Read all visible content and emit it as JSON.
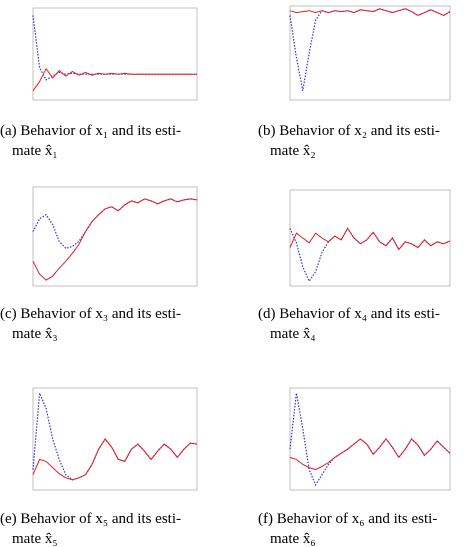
{
  "chart_data": [
    {
      "type": "line",
      "caption": [
        "(a) Behavior of x₁ and its esti-",
        "mate x̂₁"
      ],
      "xlim": [
        0,
        100
      ],
      "ylim": [
        0,
        1
      ],
      "x": [
        0,
        4,
        8,
        12,
        16,
        20,
        24,
        28,
        32,
        36,
        40,
        44,
        48,
        52,
        56,
        60,
        64,
        68,
        72,
        76,
        80,
        84,
        88,
        92,
        96,
        100
      ],
      "series": [
        {
          "color": "#3333cc",
          "style": "dotted",
          "values": [
            0.92,
            0.35,
            0.22,
            0.26,
            0.3,
            0.28,
            0.29,
            0.28,
            0.28,
            0.28,
            0.28,
            0.28,
            0.28,
            0.28,
            0.28,
            0.28,
            0.28,
            0.28,
            0.28,
            0.28,
            0.28,
            0.28,
            0.28,
            0.28,
            0.28,
            0.28
          ]
        },
        {
          "color": "#e02020",
          "style": "solid",
          "values": [
            0.1,
            0.2,
            0.34,
            0.24,
            0.32,
            0.26,
            0.31,
            0.27,
            0.3,
            0.27,
            0.29,
            0.28,
            0.29,
            0.28,
            0.29,
            0.28,
            0.28,
            0.28,
            0.28,
            0.28,
            0.28,
            0.28,
            0.28,
            0.28,
            0.28,
            0.28
          ]
        }
      ]
    },
    {
      "type": "line",
      "caption": [
        "(b) Behavior of x₂ and its esti-",
        "mate x̂₂"
      ],
      "xlim": [
        0,
        100
      ],
      "ylim": [
        0,
        1
      ],
      "x": [
        0,
        4,
        8,
        12,
        16,
        20,
        24,
        28,
        32,
        36,
        40,
        44,
        48,
        52,
        56,
        60,
        64,
        68,
        72,
        76,
        80,
        84,
        88,
        92,
        96,
        100
      ],
      "series": [
        {
          "color": "#3333cc",
          "style": "dotted",
          "values": [
            0.9,
            0.45,
            0.1,
            0.5,
            0.85,
            0.95,
            0.93,
            0.95,
            0.94,
            0.95,
            0.93,
            0.96,
            0.95,
            0.94,
            0.97,
            0.95,
            0.93,
            0.95,
            0.97,
            0.94,
            0.9,
            0.93,
            0.96,
            0.93,
            0.9,
            0.94
          ]
        },
        {
          "color": "#e02020",
          "style": "solid",
          "values": [
            0.95,
            0.93,
            0.94,
            0.95,
            0.93,
            0.95,
            0.93,
            0.95,
            0.94,
            0.95,
            0.93,
            0.96,
            0.95,
            0.94,
            0.97,
            0.95,
            0.93,
            0.95,
            0.97,
            0.94,
            0.9,
            0.93,
            0.96,
            0.93,
            0.9,
            0.94
          ]
        }
      ]
    },
    {
      "type": "line",
      "caption": [
        "(c) Behavior of x₃ and its esti-",
        "mate x̂₃"
      ],
      "xlim": [
        0,
        100
      ],
      "ylim": [
        0,
        1
      ],
      "x": [
        0,
        4,
        8,
        12,
        16,
        20,
        24,
        28,
        32,
        36,
        40,
        44,
        48,
        52,
        56,
        60,
        64,
        68,
        72,
        76,
        80,
        84,
        88,
        92,
        96,
        100
      ],
      "series": [
        {
          "color": "#3333cc",
          "style": "dotted",
          "values": [
            0.55,
            0.68,
            0.72,
            0.62,
            0.45,
            0.38,
            0.4,
            0.45,
            0.55,
            0.65,
            0.72,
            0.78,
            0.8,
            0.76,
            0.82,
            0.86,
            0.84,
            0.88,
            0.86,
            0.83,
            0.86,
            0.88,
            0.85,
            0.87,
            0.88,
            0.87
          ]
        },
        {
          "color": "#e02020",
          "style": "solid",
          "values": [
            0.25,
            0.12,
            0.06,
            0.1,
            0.18,
            0.25,
            0.33,
            0.42,
            0.55,
            0.65,
            0.72,
            0.78,
            0.8,
            0.76,
            0.82,
            0.86,
            0.84,
            0.88,
            0.86,
            0.83,
            0.86,
            0.88,
            0.85,
            0.87,
            0.88,
            0.87
          ]
        }
      ]
    },
    {
      "type": "line",
      "caption": [
        "(d) Behavior of x₄ and its esti-",
        "mate x̂₄"
      ],
      "xlim": [
        0,
        100
      ],
      "ylim": [
        0,
        1
      ],
      "x": [
        0,
        4,
        8,
        12,
        16,
        20,
        24,
        28,
        32,
        36,
        40,
        44,
        48,
        52,
        56,
        60,
        64,
        68,
        72,
        76,
        80,
        84,
        88,
        92,
        96,
        100
      ],
      "series": [
        {
          "color": "#3333cc",
          "style": "dotted",
          "values": [
            0.6,
            0.45,
            0.2,
            0.05,
            0.15,
            0.35,
            0.46,
            0.52,
            0.48,
            0.6,
            0.5,
            0.44,
            0.48,
            0.56,
            0.46,
            0.42,
            0.5,
            0.38,
            0.46,
            0.44,
            0.4,
            0.48,
            0.42,
            0.46,
            0.44,
            0.47
          ]
        },
        {
          "color": "#e02020",
          "style": "solid",
          "values": [
            0.4,
            0.55,
            0.5,
            0.45,
            0.55,
            0.5,
            0.46,
            0.52,
            0.48,
            0.6,
            0.5,
            0.44,
            0.48,
            0.56,
            0.46,
            0.42,
            0.5,
            0.38,
            0.46,
            0.44,
            0.4,
            0.48,
            0.42,
            0.46,
            0.44,
            0.47
          ]
        }
      ]
    },
    {
      "type": "line",
      "caption": [
        "(e) Behavior of x₅ and its esti-",
        "mate x̂₅"
      ],
      "xlim": [
        0,
        100
      ],
      "ylim": [
        0,
        1
      ],
      "x": [
        0,
        4,
        8,
        12,
        16,
        20,
        24,
        28,
        32,
        36,
        40,
        44,
        48,
        52,
        56,
        60,
        64,
        68,
        72,
        76,
        80,
        84,
        88,
        92,
        96,
        100
      ],
      "series": [
        {
          "color": "#3333cc",
          "style": "dotted",
          "values": [
            0.2,
            0.95,
            0.8,
            0.5,
            0.3,
            0.15,
            0.1,
            0.12,
            0.15,
            0.25,
            0.4,
            0.5,
            0.42,
            0.3,
            0.28,
            0.4,
            0.45,
            0.38,
            0.3,
            0.38,
            0.45,
            0.4,
            0.32,
            0.4,
            0.46,
            0.45
          ]
        },
        {
          "color": "#e02020",
          "style": "solid",
          "values": [
            0.15,
            0.3,
            0.28,
            0.22,
            0.16,
            0.12,
            0.1,
            0.12,
            0.15,
            0.25,
            0.4,
            0.5,
            0.42,
            0.3,
            0.28,
            0.4,
            0.45,
            0.38,
            0.3,
            0.38,
            0.45,
            0.4,
            0.32,
            0.4,
            0.46,
            0.45
          ]
        }
      ]
    },
    {
      "type": "line",
      "caption": [
        "(f) Behavior of x₆ and its esti-",
        "mate x̂₆"
      ],
      "xlim": [
        0,
        100
      ],
      "ylim": [
        0,
        1
      ],
      "x": [
        0,
        4,
        8,
        12,
        16,
        20,
        24,
        28,
        32,
        36,
        40,
        44,
        48,
        52,
        56,
        60,
        64,
        68,
        72,
        76,
        80,
        84,
        88,
        92,
        96,
        100
      ],
      "series": [
        {
          "color": "#3333cc",
          "style": "dotted",
          "values": [
            0.4,
            0.95,
            0.6,
            0.2,
            0.05,
            0.15,
            0.25,
            0.32,
            0.36,
            0.4,
            0.45,
            0.5,
            0.45,
            0.35,
            0.42,
            0.5,
            0.42,
            0.32,
            0.4,
            0.5,
            0.44,
            0.34,
            0.4,
            0.48,
            0.42,
            0.36
          ]
        },
        {
          "color": "#e02020",
          "style": "solid",
          "values": [
            0.32,
            0.3,
            0.25,
            0.22,
            0.2,
            0.23,
            0.27,
            0.32,
            0.36,
            0.4,
            0.45,
            0.5,
            0.45,
            0.35,
            0.42,
            0.5,
            0.42,
            0.32,
            0.4,
            0.5,
            0.44,
            0.34,
            0.4,
            0.48,
            0.42,
            0.36
          ]
        }
      ]
    }
  ]
}
